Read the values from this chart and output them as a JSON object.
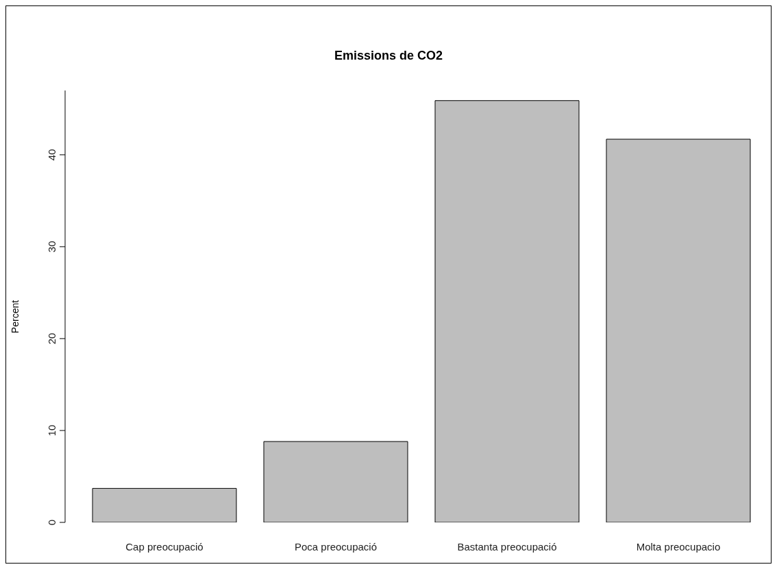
{
  "chart_data": {
    "type": "bar",
    "title": "Emissions de CO2",
    "ylabel": "Percent",
    "categories": [
      "Cap preocupació",
      "Poca preocupació",
      "Bastanta preocupació",
      "Molta preocupacio"
    ],
    "values": [
      3.7,
      8.8,
      45.9,
      41.7
    ],
    "color": "#bebebe",
    "ylim": [
      0,
      47
    ],
    "yticks": [
      0,
      10,
      20,
      30,
      40
    ],
    "grid": false,
    "legend": false
  }
}
